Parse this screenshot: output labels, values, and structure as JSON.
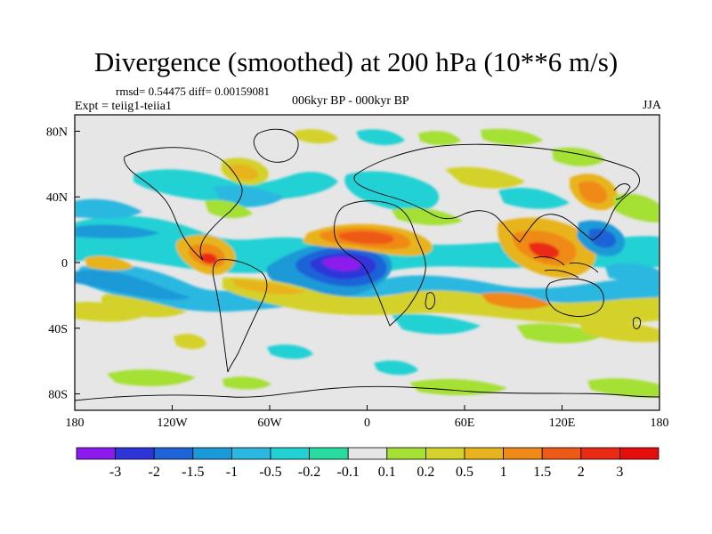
{
  "title": "Divergence (smoothed) at 200 hPa (10**6 m/s)",
  "stats": "rmsd= 0.54475 diff= 0.00159081",
  "experiment": "Expt = teiig1-teiia1",
  "period": "006kyr BP - 000kyr BP",
  "season": "JJA",
  "map": {
    "lon_range": [
      -180,
      180
    ],
    "lat_range": [
      -90,
      90
    ],
    "background_color": "#e6e6e6",
    "lon_ticks": [
      {
        "value": -180,
        "label": "180"
      },
      {
        "value": -120,
        "label": "120W"
      },
      {
        "value": -60,
        "label": "60W"
      },
      {
        "value": 0,
        "label": "0"
      },
      {
        "value": 60,
        "label": "60E"
      },
      {
        "value": 120,
        "label": "120E"
      },
      {
        "value": 180,
        "label": "180"
      }
    ],
    "lat_ticks": [
      {
        "value": 80,
        "label": "80N"
      },
      {
        "value": 40,
        "label": "40N"
      },
      {
        "value": 0,
        "label": "0"
      },
      {
        "value": -40,
        "label": "40S"
      },
      {
        "value": -80,
        "label": "80S"
      }
    ]
  },
  "legend": {
    "levels": [
      "-3",
      "-2",
      "-1.5",
      "-1",
      "-0.5",
      "-0.2",
      "-0.1",
      "0.1",
      "0.2",
      "0.5",
      "1",
      "1.5",
      "2",
      "3"
    ],
    "colors": [
      "#8c1aee",
      "#2d35d9",
      "#1e64d8",
      "#1a9ad8",
      "#2bb8e0",
      "#22d1d4",
      "#26dca0",
      "#e6e6e6",
      "#a5e034",
      "#d4d22b",
      "#e8b41e",
      "#ef8a18",
      "#ee5a15",
      "#ea2a14",
      "#e60d0d"
    ]
  }
}
